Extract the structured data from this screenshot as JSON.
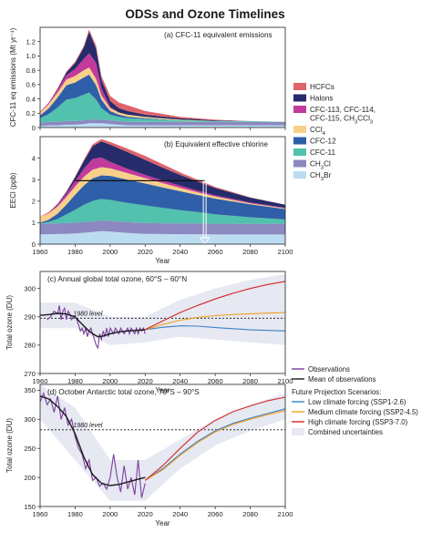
{
  "title": "ODSs and Ozone Timelines",
  "colors": {
    "HCFCs": "#e0636b",
    "Halons": "#262b6b",
    "CFC-113, CFC-114, CFC-115, CH3CCl3": "#c23a9c",
    "CCl4": "#f8d08a",
    "CFC-12": "#2f5fa8",
    "CFC-11": "#52c1ad",
    "CH3Cl": "#8c88c0",
    "CH3Br": "#bcdcf2",
    "observations": "#7b3f9e",
    "mean_observations": "#1a1a1a",
    "ssp126": "#3b82c4",
    "ssp245": "#f0a020",
    "ssp370": "#d62728",
    "uncertainty": "#e6e8f2"
  },
  "legend": {
    "species": [
      {
        "key": "HCFCs",
        "label": "HCFCs"
      },
      {
        "key": "Halons",
        "label": "Halons"
      },
      {
        "key": "CFC-113, CFC-114, CFC-115, CH3CCl3",
        "label": "CFC-113, CFC-114,",
        "label2": "CFC-115, CH3CCl3"
      },
      {
        "key": "CCl4",
        "label": "CCl4"
      },
      {
        "key": "CFC-12",
        "label": "CFC-12"
      },
      {
        "key": "CFC-11",
        "label": "CFC-11"
      },
      {
        "key": "CH3Cl",
        "label": "CH3Cl"
      },
      {
        "key": "CH3Br",
        "label": "CH3Br"
      }
    ],
    "ozone": {
      "observations": "Observations",
      "mean": "Mean of observations",
      "scenarios_title": "Future Projection Scenarios:",
      "ssp126": "Low climate forcing (SSP1-2.6)",
      "ssp245": "Medium climate forcing (SSP2-4.5)",
      "ssp370": "High climate forcing (SSP3-7.0)",
      "uncertainty": "Combined uncertainties"
    }
  },
  "chart_data": [
    {
      "type": "area",
      "title": "(a) CFC-11 equivalent emissions",
      "ylabel": "CFC-11 eq emissions (Mt yr⁻¹)",
      "xlim": [
        1960,
        2100
      ],
      "ylim": [
        0,
        1.4
      ],
      "yticks": [
        "0",
        "0.2",
        "0.4",
        "0.6",
        "0.8",
        "1.0",
        "1.2"
      ],
      "x": [
        1960,
        1965,
        1970,
        1975,
        1980,
        1985,
        1988,
        1992,
        1995,
        2000,
        2005,
        2010,
        2020,
        2040,
        2060,
        2080,
        2100
      ],
      "series": [
        {
          "name": "CH3Br",
          "values": [
            0.02,
            0.03,
            0.03,
            0.04,
            0.04,
            0.05,
            0.06,
            0.06,
            0.06,
            0.05,
            0.04,
            0.03,
            0.03,
            0.03,
            0.03,
            0.03,
            0.03
          ]
        },
        {
          "name": "CH3Cl",
          "values": [
            0.05,
            0.05,
            0.05,
            0.05,
            0.05,
            0.05,
            0.05,
            0.05,
            0.05,
            0.05,
            0.05,
            0.05,
            0.05,
            0.05,
            0.05,
            0.05,
            0.05
          ]
        },
        {
          "name": "CFC-11",
          "values": [
            0.06,
            0.11,
            0.2,
            0.3,
            0.32,
            0.36,
            0.38,
            0.28,
            0.16,
            0.08,
            0.06,
            0.05,
            0.04,
            0.02,
            0.01,
            0.01,
            0.0
          ]
        },
        {
          "name": "CFC-12",
          "values": [
            0.04,
            0.08,
            0.14,
            0.2,
            0.22,
            0.24,
            0.25,
            0.2,
            0.12,
            0.05,
            0.03,
            0.02,
            0.01,
            0.0,
            0.0,
            0.0,
            0.0
          ]
        },
        {
          "name": "CCl4",
          "values": [
            0.04,
            0.06,
            0.07,
            0.08,
            0.09,
            0.1,
            0.1,
            0.09,
            0.06,
            0.04,
            0.03,
            0.03,
            0.02,
            0.01,
            0.0,
            0.0,
            0.0
          ]
        },
        {
          "name": "CFC-113, CFC-114, CFC-115, CH3CCl3",
          "values": [
            0.01,
            0.02,
            0.04,
            0.06,
            0.1,
            0.16,
            0.2,
            0.22,
            0.1,
            0.02,
            0.0,
            0.0,
            0.0,
            0.0,
            0.0,
            0.0,
            0.0
          ]
        },
        {
          "name": "Halons",
          "values": [
            0.0,
            0.0,
            0.01,
            0.04,
            0.08,
            0.16,
            0.3,
            0.2,
            0.12,
            0.08,
            0.06,
            0.05,
            0.03,
            0.02,
            0.01,
            0.0,
            0.0
          ]
        },
        {
          "name": "HCFCs",
          "values": [
            0.0,
            0.0,
            0.01,
            0.01,
            0.02,
            0.02,
            0.03,
            0.04,
            0.05,
            0.07,
            0.08,
            0.08,
            0.05,
            0.02,
            0.01,
            0.0,
            0.0
          ]
        }
      ]
    },
    {
      "type": "area",
      "title": "(b) Equivalent effective chlorine",
      "ylabel": "EECl (ppb)",
      "xlim": [
        1960,
        2100
      ],
      "ylim": [
        0,
        5
      ],
      "yticks": [
        "0",
        "1",
        "2",
        "3",
        "4"
      ],
      "x": [
        1960,
        1965,
        1970,
        1975,
        1980,
        1985,
        1990,
        1995,
        2000,
        2010,
        2020,
        2030,
        2040,
        2050,
        2060,
        2080,
        2100
      ],
      "series": [
        {
          "name": "CH3Br",
          "values": [
            0.45,
            0.46,
            0.47,
            0.48,
            0.5,
            0.53,
            0.56,
            0.6,
            0.58,
            0.52,
            0.48,
            0.47,
            0.46,
            0.46,
            0.45,
            0.45,
            0.45
          ]
        },
        {
          "name": "CH3Cl",
          "values": [
            0.5,
            0.5,
            0.5,
            0.5,
            0.5,
            0.5,
            0.5,
            0.5,
            0.5,
            0.5,
            0.5,
            0.5,
            0.5,
            0.5,
            0.5,
            0.5,
            0.5
          ]
        },
        {
          "name": "CFC-11",
          "values": [
            0.02,
            0.08,
            0.2,
            0.4,
            0.6,
            0.8,
            0.95,
            1.0,
            0.98,
            0.9,
            0.82,
            0.72,
            0.62,
            0.53,
            0.44,
            0.3,
            0.2
          ]
        },
        {
          "name": "CFC-12",
          "values": [
            0.03,
            0.1,
            0.25,
            0.45,
            0.7,
            0.9,
            1.05,
            1.1,
            1.12,
            1.08,
            1.02,
            0.95,
            0.88,
            0.8,
            0.73,
            0.6,
            0.48
          ]
        },
        {
          "name": "CCl4",
          "values": [
            0.28,
            0.3,
            0.33,
            0.36,
            0.38,
            0.4,
            0.4,
            0.38,
            0.35,
            0.3,
            0.25,
            0.2,
            0.16,
            0.12,
            0.09,
            0.05,
            0.03
          ]
        },
        {
          "name": "CFC-113, CFC-114, CFC-115, CH3CCl3",
          "values": [
            0.01,
            0.03,
            0.08,
            0.15,
            0.25,
            0.38,
            0.5,
            0.45,
            0.3,
            0.2,
            0.15,
            0.12,
            0.1,
            0.08,
            0.06,
            0.04,
            0.03
          ]
        },
        {
          "name": "Halons",
          "values": [
            0.0,
            0.01,
            0.03,
            0.08,
            0.18,
            0.35,
            0.6,
            0.75,
            0.8,
            0.78,
            0.7,
            0.6,
            0.5,
            0.42,
            0.34,
            0.22,
            0.14
          ]
        },
        {
          "name": "HCFCs",
          "values": [
            0.0,
            0.01,
            0.02,
            0.03,
            0.04,
            0.06,
            0.08,
            0.1,
            0.12,
            0.16,
            0.18,
            0.16,
            0.12,
            0.08,
            0.05,
            0.02,
            0.01
          ]
        }
      ],
      "reference_level": 2.95,
      "return_year": 2054
    },
    {
      "type": "line",
      "title": "(c) Annual global total ozone, 60°S – 60°N",
      "ylabel": "Total ozone (DU)",
      "xlabel": "Year",
      "xlim": [
        1960,
        2100
      ],
      "ylim": [
        270,
        306
      ],
      "yticks": [
        "270",
        "280",
        "290",
        "300"
      ],
      "xticks": [
        "1960",
        "1980",
        "2000",
        "2020",
        "2040",
        "2060",
        "2080",
        "2100"
      ],
      "reference_label": "1980 level",
      "reference_value": 289.5,
      "series": [
        {
          "name": "Observations",
          "x": [
            1964,
            1966,
            1968,
            1970,
            1971,
            1972,
            1973,
            1974,
            1975,
            1976,
            1977,
            1978,
            1979,
            1980,
            1981,
            1982,
            1983,
            1984,
            1985,
            1986,
            1987,
            1988,
            1989,
            1990,
            1991,
            1992,
            1993,
            1994,
            1995,
            1996,
            1997,
            1998,
            1999,
            2000,
            2001,
            2002,
            2003,
            2004,
            2005,
            2006,
            2007,
            2008,
            2009,
            2010,
            2011,
            2012,
            2013,
            2014,
            2015,
            2016,
            2017,
            2018,
            2019,
            2020
          ],
          "values": [
            289,
            290,
            292,
            291,
            294,
            289,
            292,
            293,
            289,
            292,
            291,
            289,
            290,
            290,
            289,
            287,
            285,
            286,
            284,
            286,
            283,
            285,
            286,
            284,
            282,
            280,
            279,
            284,
            282,
            285,
            283,
            286,
            283,
            286,
            285,
            284,
            286,
            285,
            284,
            286,
            285,
            284,
            285,
            286,
            284,
            286,
            285,
            284,
            286,
            284,
            286,
            285,
            286,
            284
          ]
        },
        {
          "name": "Mean of observations",
          "x": [
            1960,
            1965,
            1970,
            1975,
            1980,
            1983,
            1987,
            1990,
            1993,
            1996,
            2000,
            2005,
            2010,
            2015,
            2020
          ],
          "values": [
            290.5,
            290.8,
            291.2,
            291.0,
            290.0,
            288.0,
            285.5,
            284.0,
            283.0,
            283.2,
            284.0,
            284.7,
            285.0,
            285.2,
            285.4
          ]
        },
        {
          "name": "SSP1-2.6",
          "x": [
            2020,
            2030,
            2040,
            2050,
            2060,
            2070,
            2080,
            2090,
            2100
          ],
          "values": [
            285.5,
            286.3,
            286.8,
            286.7,
            286.2,
            285.8,
            285.4,
            285.2,
            285.0
          ]
        },
        {
          "name": "SSP2-4.5",
          "x": [
            2020,
            2030,
            2040,
            2050,
            2060,
            2070,
            2080,
            2090,
            2100
          ],
          "values": [
            285.5,
            287.3,
            288.8,
            289.8,
            290.4,
            290.8,
            291.1,
            291.3,
            291.5
          ]
        },
        {
          "name": "SSP3-7.0",
          "x": [
            2020,
            2030,
            2040,
            2050,
            2060,
            2070,
            2080,
            2090,
            2100
          ],
          "values": [
            285.5,
            288.5,
            291.5,
            294.0,
            296.3,
            298.3,
            300.0,
            301.4,
            302.5
          ]
        }
      ],
      "uncertainty": {
        "x": [
          1960,
          1980,
          2000,
          2020,
          2040,
          2060,
          2080,
          2100
        ],
        "lower": [
          286,
          286,
          280,
          281,
          283,
          282,
          281,
          280
        ],
        "upper": [
          295,
          295,
          290,
          290,
          296,
          300,
          303,
          305
        ]
      }
    },
    {
      "type": "line",
      "title": "(d) October Antarctic total ozone, 70°S – 90°S",
      "ylabel": "Total ozone (DU)",
      "xlabel": "Year",
      "xlim": [
        1960,
        2100
      ],
      "ylim": [
        150,
        360
      ],
      "yticks": [
        "150",
        "200",
        "250",
        "300",
        "350"
      ],
      "xticks": [
        "1960",
        "1980",
        "2000",
        "2020",
        "2040",
        "2060",
        "2080",
        "2100"
      ],
      "reference_label": "1980 level",
      "reference_value": 282,
      "series": [
        {
          "name": "Observations",
          "x": [
            1960,
            1962,
            1964,
            1966,
            1968,
            1970,
            1972,
            1974,
            1976,
            1978,
            1980,
            1982,
            1984,
            1986,
            1988,
            1990,
            1992,
            1994,
            1996,
            1998,
            2000,
            2002,
            2004,
            2006,
            2008,
            2010,
            2012,
            2014,
            2016,
            2018,
            2020
          ],
          "values": [
            330,
            345,
            325,
            335,
            312,
            340,
            300,
            320,
            290,
            300,
            270,
            250,
            240,
            215,
            230,
            195,
            200,
            185,
            190,
            180,
            200,
            240,
            200,
            175,
            220,
            180,
            200,
            170,
            230,
            165,
            190
          ]
        },
        {
          "name": "Mean of observations",
          "x": [
            1960,
            1965,
            1970,
            1975,
            1980,
            1985,
            1990,
            1995,
            2000,
            2005,
            2010,
            2015,
            2020
          ],
          "values": [
            340,
            335,
            322,
            305,
            275,
            235,
            205,
            190,
            186,
            188,
            192,
            196,
            200
          ]
        },
        {
          "name": "SSP1-2.6",
          "x": [
            2020,
            2030,
            2040,
            2050,
            2060,
            2070,
            2080,
            2090,
            2100
          ],
          "values": [
            195,
            215,
            240,
            262,
            280,
            293,
            302,
            310,
            318
          ]
        },
        {
          "name": "SSP2-4.5",
          "x": [
            2020,
            2030,
            2040,
            2050,
            2060,
            2070,
            2080,
            2090,
            2100
          ],
          "values": [
            195,
            213,
            238,
            260,
            278,
            291,
            300,
            308,
            315
          ]
        },
        {
          "name": "SSP3-7.0",
          "x": [
            2020,
            2030,
            2040,
            2050,
            2060,
            2070,
            2080,
            2090,
            2100
          ],
          "values": [
            195,
            220,
            250,
            278,
            298,
            313,
            323,
            332,
            338
          ]
        }
      ],
      "uncertainty": {
        "x": [
          1960,
          1980,
          2000,
          2020,
          2040,
          2060,
          2080,
          2100
        ],
        "lower": [
          300,
          230,
          160,
          160,
          215,
          255,
          280,
          300
        ],
        "upper": [
          360,
          320,
          230,
          230,
          265,
          300,
          325,
          345
        ]
      }
    }
  ]
}
